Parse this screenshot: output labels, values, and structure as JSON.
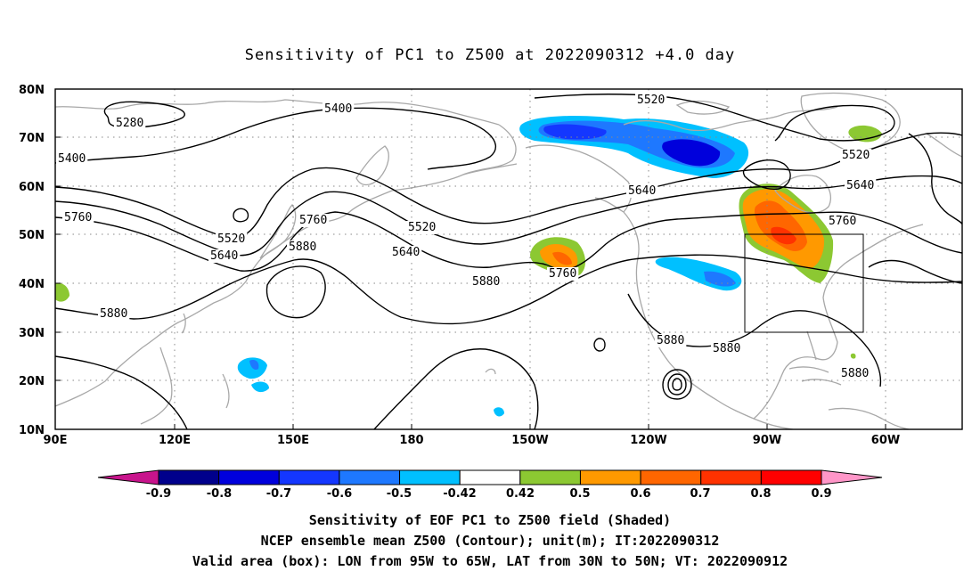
{
  "title": "Sensitivity of PC1 to Z500 at 2022090312 +4.0 day",
  "map": {
    "lat_labels": [
      "80N",
      "70N",
      "60N",
      "50N",
      "40N",
      "30N",
      "20N",
      "10N"
    ],
    "lon_labels": [
      "90E",
      "120E",
      "150E",
      "180",
      "150W",
      "120W",
      "90W",
      "60W"
    ],
    "contour_labels": [
      "5280",
      "5400",
      "5400",
      "5520",
      "5520",
      "5520",
      "5520",
      "5640",
      "5640",
      "5640",
      "5640",
      "5760",
      "5760",
      "5760",
      "5760",
      "5880",
      "5880",
      "5880",
      "5880",
      "5880",
      "5880"
    ],
    "valid_box": {
      "lon_min": "95W",
      "lon_max": "65W",
      "lat_min": "30N",
      "lat_max": "50N"
    }
  },
  "colorbar": {
    "labels": [
      "-0.9",
      "-0.8",
      "-0.7",
      "-0.6",
      "-0.5",
      "-0.42",
      "0.42",
      "0.5",
      "0.6",
      "0.7",
      "0.8",
      "0.9"
    ],
    "colors": [
      "#00008c",
      "#0000dc",
      "#1437ff",
      "#1e78ff",
      "#00c0ff",
      "#ffffff",
      "#8cc832",
      "#ff9900",
      "#ff6600",
      "#ff3200",
      "#ff0000"
    ],
    "low_end_color": "#c8148c",
    "high_end_color": "#ff96c8"
  },
  "caption": [
    "Sensitivity of EOF PC1 to Z500 field (Shaded)",
    "NCEP ensemble mean Z500 (Contour); unit(m); IT:2022090312",
    "Valid area (box): LON from 95W to 65W, LAT from 30N to 50N; VT: 2022090912"
  ]
}
